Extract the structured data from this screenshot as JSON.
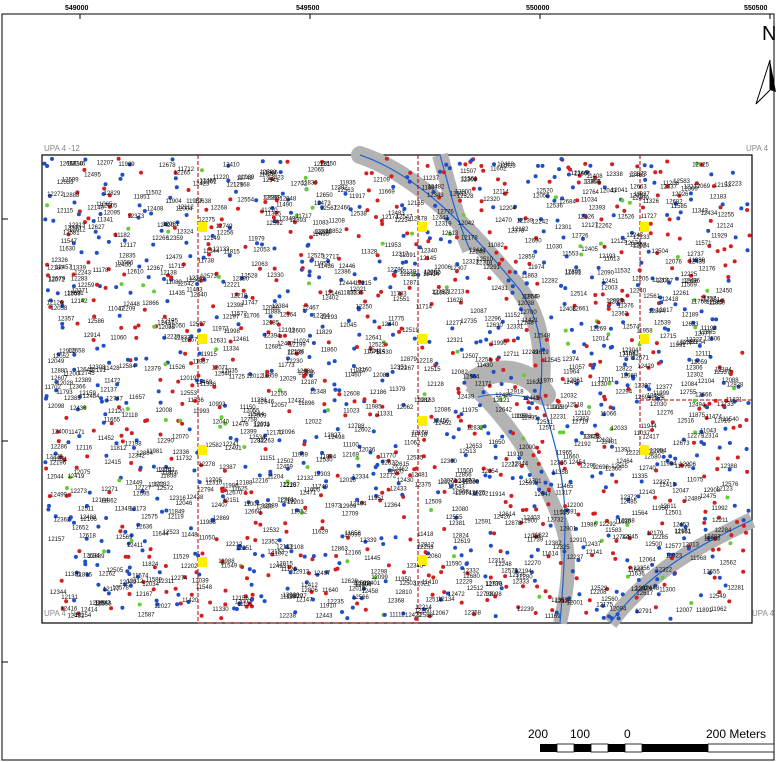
{
  "map": {
    "grid_ticks_x": [
      "549000",
      "549500",
      "550000",
      "550500"
    ],
    "upa_labels": {
      "top_left": "UPA 4 -12",
      "top_right": "UPA 4",
      "bottom_left": "UPA 4 -9",
      "bottom_right": "UPA 4"
    },
    "north_label": "N",
    "scale_bar": {
      "labels": [
        "200",
        "100",
        "0",
        "200 Meters"
      ]
    },
    "legend_colors": {
      "blue_points": "#1f4fc4",
      "red_points": "#d41f1f",
      "green_points": "#66cc33",
      "yellow_markers": "#ffee00",
      "road": "#b3b3b3",
      "stream": "#1e64d2",
      "boundary": "#b00000"
    },
    "sample_labels": [
      "12859",
      "12866",
      "12735",
      "12733",
      "12732",
      "12589",
      "12599",
      "12563",
      "12496",
      "12873",
      "12738",
      "12744",
      "12607",
      "12583",
      "12581",
      "12585",
      "12878",
      "12717",
      "12608",
      "12576",
      "12577",
      "12749",
      "12610",
      "12612",
      "12613",
      "12893",
      "12824",
      "12617",
      "12614",
      "12902",
      "12900",
      "12653",
      "12552",
      "12642",
      "12543",
      "12532",
      "12513",
      "12514",
      "12510",
      "12502",
      "12455",
      "12462",
      "12454",
      "12453",
      "12365",
      "12228",
      "12221",
      "12216",
      "12210",
      "12208",
      "12229",
      "12104",
      "12105",
      "12086",
      "12087",
      "12098",
      "11976",
      "11972",
      "11971",
      "11862",
      "11860",
      "11859",
      "11858",
      "11851",
      "11849",
      "11748",
      "11739",
      "11737",
      "11738",
      "11757",
      "11725",
      "11643",
      "11644",
      "11646",
      "11650",
      "11660",
      "11636",
      "11630",
      "11605",
      "11602",
      "11592",
      "11590",
      "11589",
      "11585",
      "11583",
      "11548",
      "11547",
      "11540",
      "11532",
      "11530",
      "11408",
      "11747",
      "11420",
      "11379",
      "11376",
      "11361",
      "11220",
      "11212",
      "11208",
      "11206",
      "11204",
      "11200",
      "11199",
      "11192",
      "11169",
      "11178",
      "11182",
      "11150",
      "11151",
      "11152",
      "11334",
      "11335",
      "11336",
      "11341",
      "11344",
      "11343",
      "11328",
      "11330",
      "11112",
      "11116",
      "12372",
      "12373",
      "12375",
      "12340",
      "12331",
      "12327",
      "12326",
      "12310",
      "12308",
      "12304",
      "12302",
      "12301",
      "12289",
      "12282",
      "12277",
      "12275",
      "12276",
      "12270",
      "12281",
      "12262",
      "12258",
      "12220",
      "12241",
      "12202",
      "12196",
      "12190",
      "12179",
      "12143",
      "12127",
      "12125",
      "12122",
      "12081",
      "12078",
      "12071",
      "12069",
      "12051",
      "12047",
      "12044",
      "12031",
      "12028",
      "11954",
      "11944",
      "11937",
      "11935",
      "11929",
      "11919",
      "11917",
      "11915",
      "11914",
      "11910",
      "11905",
      "11904",
      "11896",
      "11895",
      "11891",
      "11888",
      "11875",
      "11863",
      "11833",
      "11830",
      "11829",
      "11824",
      "11823",
      "11822",
      "11821",
      "11815",
      "11812",
      "11806",
      "11793",
      "11786",
      "11783",
      "11775",
      "11773",
      "11770",
      "11763",
      "11749",
      "11732",
      "11727",
      "11718",
      "11717",
      "11715",
      "11714",
      "11712",
      "11706",
      "11702",
      "11690",
      "11683",
      "11678",
      "11672",
      "11669",
      "11658",
      "11657",
      "11655",
      "11640",
      "11631",
      "11629",
      "11628",
      "11625",
      "11622",
      "11619",
      "11614",
      "11613",
      "11610",
      "11578",
      "11574",
      "11572",
      "11571",
      "11569",
      "11564",
      "11561",
      "11555",
      "11553",
      "11549",
      "11529",
      "11526",
      "11507",
      "11502",
      "11500",
      "11490",
      "11481",
      "11474",
      "11472",
      "11471",
      "11469",
      "11460",
      "11452",
      "11448",
      "11445",
      "11436",
      "11435",
      "11430",
      "11428",
      "11421",
      "11418",
      "11414",
      "11410",
      "11403",
      "11393",
      "11391",
      "11381",
      "11358",
      "11349",
      "11339",
      "11331",
      "11330",
      "11326",
      "11325",
      "11317",
      "11300",
      "11281",
      "11270",
      "11237",
      "11126",
      "11121",
      "11100",
      "11089",
      "11083",
      "11082",
      "11075",
      "11072",
      "11066",
      "11065",
      "11062",
      "11060",
      "11057",
      "11055",
      "11050",
      "11047",
      "11043",
      "11039",
      "11037",
      "11034",
      "11030",
      "11024",
      "11023",
      "11006",
      "11004",
      "10999",
      "10998",
      "10993",
      "12918",
      "12915",
      "12914",
      "12913",
      "12911",
      "12910",
      "12909",
      "12908",
      "12894",
      "12888",
      "12884",
      "12880",
      "12879",
      "12876",
      "12871",
      "12869",
      "12863",
      "12856",
      "12852",
      "12845",
      "12844",
      "12842",
      "12835",
      "12832",
      "12829",
      "12828",
      "12827",
      "12825",
      "12822",
      "12815",
      "12812",
      "12810",
      "12806",
      "12805",
      "12801",
      "12800",
      "12794",
      "12791",
      "12788",
      "12787",
      "12786",
      "12776",
      "12764",
      "12758",
      "12755",
      "12749",
      "12745",
      "12740",
      "12737",
      "12730",
      "12727",
      "12726",
      "12719",
      "12715",
      "12711",
      "12709",
      "12705",
      "12702",
      "12701",
      "12700",
      "12698",
      "12694",
      "12691",
      "12690",
      "12689",
      "12686",
      "12684",
      "12682",
      "12681",
      "12680",
      "12678",
      "12674",
      "12673",
      "12671",
      "12670",
      "12669",
      "12667",
      "12666",
      "12663",
      "12661",
      "12660",
      "12658",
      "12655",
      "12652",
      "12650",
      "12648",
      "12647",
      "12645",
      "12641",
      "12640",
      "12638",
      "12636",
      "12634",
      "12633",
      "12631",
      "12630",
      "12628",
      "12627",
      "12625",
      "12622",
      "12620",
      "12619",
      "12618",
      "12615",
      "12611",
      "12609",
      "12606",
      "12604",
      "12602",
      "12600",
      "12597",
      "12595",
      "12593",
      "12592",
      "12591",
      "12588",
      "12587",
      "12586",
      "12584",
      "12582",
      "12580",
      "12579",
      "12578",
      "12575",
      "12574",
      "12573",
      "12572",
      "12571",
      "12570",
      "12569",
      "12568",
      "12567",
      "12566",
      "12565",
      "12564",
      "12562",
      "12561",
      "12560",
      "12559",
      "12558",
      "12557",
      "12556",
      "12555",
      "12554",
      "12553",
      "12551",
      "12550",
      "12549",
      "12548",
      "12547",
      "12546",
      "12545",
      "12544",
      "12542",
      "12541",
      "12540",
      "12539",
      "12538",
      "12537",
      "12536",
      "12535",
      "12534",
      "12533",
      "12531",
      "12530",
      "12529",
      "12528",
      "12527",
      "12526",
      "12525",
      "12524",
      "12523",
      "12522",
      "12521",
      "12520",
      "12519",
      "12518",
      "12517",
      "12516",
      "12515",
      "12512",
      "12511",
      "12509",
      "12508",
      "12507",
      "12506",
      "12505",
      "12504",
      "12503",
      "12501",
      "12500",
      "12499",
      "12498",
      "12497",
      "12495",
      "12494",
      "12493",
      "12492",
      "12491",
      "12490",
      "12489",
      "12488",
      "12487",
      "12486",
      "12485",
      "12484",
      "12483",
      "12482",
      "12481",
      "12480",
      "12479",
      "12478",
      "12477",
      "12476",
      "12475",
      "12474",
      "12473",
      "12472",
      "12471",
      "12470",
      "12469",
      "12468",
      "12467",
      "12466",
      "12465",
      "12464",
      "12463",
      "12461",
      "12460",
      "12459",
      "12458",
      "12457",
      "12456",
      "12452",
      "12451",
      "12450",
      "12449",
      "12448",
      "12447",
      "12446",
      "12445",
      "12444",
      "12443",
      "12442",
      "12441",
      "12440",
      "12439",
      "12438",
      "12437",
      "12436",
      "12435",
      "12434",
      "12433",
      "12432",
      "12431",
      "12430",
      "12429",
      "12428",
      "12427",
      "12426",
      "12425",
      "12424",
      "12423",
      "12422",
      "12421",
      "12420",
      "12419",
      "12418",
      "12417",
      "12416",
      "12415",
      "12414",
      "12413",
      "12412",
      "12411",
      "12410",
      "12409",
      "12408",
      "12407",
      "12406",
      "12405",
      "12404",
      "12403",
      "12402",
      "12401",
      "12400",
      "12399",
      "12398",
      "12397",
      "12396",
      "12395",
      "12394",
      "12393",
      "12392",
      "12391",
      "12390",
      "12389",
      "12388",
      "12387",
      "12386",
      "12385",
      "12384",
      "12383",
      "12382",
      "12381",
      "12380",
      "12379",
      "12378",
      "12377",
      "12376",
      "12374",
      "12371",
      "12370",
      "12369",
      "12368",
      "12367",
      "12366",
      "12364",
      "12363",
      "12362",
      "12361",
      "12360",
      "12359",
      "12358",
      "12357",
      "12356",
      "12355",
      "12354",
      "12353",
      "12352",
      "12351",
      "12350",
      "12349",
      "12348",
      "12347",
      "12346",
      "12345",
      "12344",
      "12343",
      "12342",
      "12341",
      "12339",
      "12338",
      "12337",
      "12336",
      "12335",
      "12334",
      "12333",
      "12332",
      "12330",
      "12329",
      "12328",
      "12325",
      "12324",
      "12323",
      "12322",
      "12321",
      "12320",
      "12319",
      "12318",
      "12317",
      "12316",
      "12315",
      "12314",
      "12313",
      "12312",
      "12311",
      "12309",
      "12307",
      "12306",
      "12305",
      "12303",
      "12300",
      "12299",
      "12298",
      "12297",
      "12296",
      "12295",
      "12294",
      "12293",
      "12292",
      "12291",
      "12290",
      "12288",
      "12287",
      "12286",
      "12285",
      "12284",
      "12283",
      "12280",
      "12279",
      "12278",
      "12274",
      "12273",
      "12272",
      "12271",
      "12269",
      "12268",
      "12267",
      "12266",
      "12265",
      "12264",
      "12263",
      "12261",
      "12260",
      "12259",
      "12257",
      "12256",
      "12255",
      "12254",
      "12253",
      "12252",
      "12251",
      "12250",
      "12249",
      "12248",
      "12247",
      "12246",
      "12245",
      "12244",
      "12243",
      "12242",
      "12240",
      "12239",
      "12238",
      "12237",
      "12236",
      "12235",
      "12234",
      "12233",
      "12232",
      "12231",
      "12230",
      "12227",
      "12226",
      "12225",
      "12224",
      "12223",
      "12222",
      "12219",
      "12218",
      "12217",
      "12215",
      "12214",
      "12213",
      "12212",
      "12211",
      "12209",
      "12207",
      "12206",
      "12205",
      "12204",
      "12203",
      "12201",
      "12200",
      "12199",
      "12198",
      "12197",
      "12195",
      "12194",
      "12193",
      "12192",
      "12191",
      "12189",
      "12188",
      "12187",
      "12186",
      "12185",
      "12184",
      "12183",
      "12182",
      "12181",
      "12180",
      "12178",
      "12177",
      "12176",
      "12175",
      "12174",
      "12173",
      "12172",
      "12171",
      "12170",
      "12169",
      "12168",
      "12167",
      "12166",
      "12165",
      "12164",
      "12163",
      "12162",
      "12161",
      "12160",
      "12159",
      "12158",
      "12157",
      "12156",
      "12155",
      "12154",
      "12153",
      "12152",
      "12151",
      "12150",
      "12149",
      "12148",
      "12147",
      "12146",
      "12145",
      "12144",
      "12142",
      "12141",
      "12140",
      "12139",
      "12138",
      "12137",
      "12136",
      "12135",
      "12134",
      "12133",
      "12132",
      "12131",
      "12130",
      "12129",
      "12128",
      "12126",
      "12124",
      "12123",
      "12121",
      "12120",
      "12119",
      "12118",
      "12117",
      "12116",
      "12115",
      "12114",
      "12113",
      "12112",
      "12111",
      "12110",
      "12109",
      "12108",
      "12107",
      "12106",
      "12103",
      "12102",
      "12101",
      "12100",
      "12099",
      "12097",
      "12096",
      "12095",
      "12094",
      "12093",
      "12092",
      "12091",
      "12090",
      "12089",
      "12088",
      "12085",
      "12084",
      "12083",
      "12082",
      "12080",
      "12079",
      "12077",
      "12076",
      "12075",
      "12074",
      "12073",
      "12072",
      "12070",
      "12068",
      "12067",
      "12066",
      "12065",
      "12064",
      "12063",
      "12062",
      "12061",
      "12060",
      "12059",
      "12058",
      "12057",
      "12056",
      "12055",
      "12054",
      "12053",
      "12052",
      "12050",
      "12049",
      "12048",
      "12046",
      "12045",
      "12043",
      "12042",
      "12041",
      "12040",
      "12039",
      "12038",
      "12037",
      "12036",
      "12035",
      "12034",
      "12033",
      "12032",
      "12030",
      "12029",
      "12027",
      "12026",
      "12025",
      "12024",
      "12023",
      "12022",
      "12021",
      "12020",
      "12019",
      "12018",
      "12017",
      "12016",
      "12015",
      "12014",
      "12013",
      "12012",
      "12011",
      "12010",
      "12009",
      "12008",
      "12007",
      "12006",
      "12005",
      "12004",
      "12003",
      "12002",
      "12001",
      "12000",
      "11999",
      "11998",
      "11997",
      "11996",
      "11995",
      "11994",
      "11993",
      "11992",
      "11991",
      "11990",
      "11989",
      "11988",
      "11987",
      "11986",
      "11985",
      "11984",
      "11983",
      "11982",
      "11981",
      "11980",
      "11979",
      "11978",
      "11977",
      "11975",
      "11974",
      "11973",
      "11970",
      "11969",
      "11968",
      "11967",
      "11966",
      "11965",
      "11964",
      "11963",
      "11962",
      "11961",
      "11960",
      "11959",
      "11958",
      "11957",
      "11956",
      "11955",
      "11953",
      "11952",
      "11951",
      "11950"
    ]
  }
}
